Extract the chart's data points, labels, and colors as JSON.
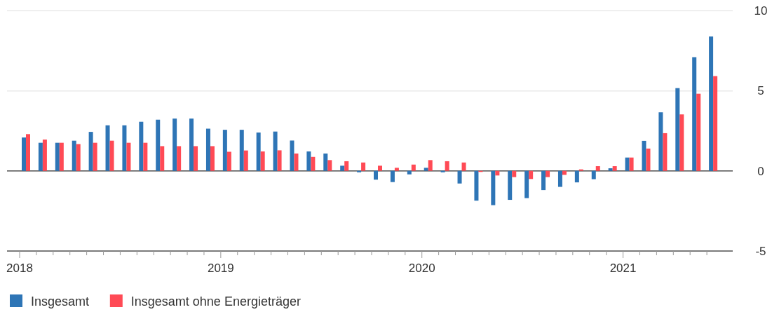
{
  "chart_data": {
    "type": "bar",
    "categories": [
      "2018",
      null,
      null,
      null,
      null,
      null,
      null,
      null,
      null,
      null,
      null,
      null,
      "2019",
      null,
      null,
      null,
      null,
      null,
      null,
      null,
      null,
      null,
      null,
      null,
      "2020",
      null,
      null,
      null,
      null,
      null,
      null,
      null,
      null,
      null,
      null,
      null,
      "2021",
      null,
      null,
      null,
      null,
      null
    ],
    "series": [
      {
        "name": "Insgesamt",
        "color": "#2e75b6",
        "values": [
          2.08,
          1.75,
          1.75,
          1.88,
          2.43,
          2.84,
          2.84,
          3.06,
          3.19,
          3.26,
          3.26,
          2.63,
          2.56,
          2.56,
          2.39,
          2.45,
          1.89,
          1.21,
          1.08,
          0.32,
          -0.09,
          -0.55,
          -0.7,
          -0.22,
          0.19,
          -0.09,
          -0.79,
          -1.86,
          -2.14,
          -1.81,
          -1.7,
          -1.2,
          -1.0,
          -0.72,
          -0.52,
          0.16,
          0.83,
          1.87,
          3.65,
          5.16,
          7.09,
          8.38
        ]
      },
      {
        "name": "Insgesamt ohne Energieträger",
        "color": "#ff4a55",
        "values": [
          2.29,
          1.95,
          1.75,
          1.67,
          1.75,
          1.88,
          1.75,
          1.75,
          1.54,
          1.54,
          1.54,
          1.54,
          1.19,
          1.27,
          1.21,
          1.28,
          1.08,
          0.87,
          0.67,
          0.6,
          0.52,
          0.32,
          0.19,
          0.39,
          0.67,
          0.6,
          0.52,
          -0.07,
          -0.29,
          -0.39,
          -0.51,
          -0.39,
          -0.25,
          0.09,
          0.29,
          0.29,
          0.83,
          1.39,
          2.35,
          3.52,
          4.81,
          5.91
        ]
      }
    ],
    "ylim": [
      -5,
      10
    ],
    "yticks": [
      -5,
      0,
      5,
      10
    ],
    "grid": "y",
    "legend": "bottom"
  }
}
